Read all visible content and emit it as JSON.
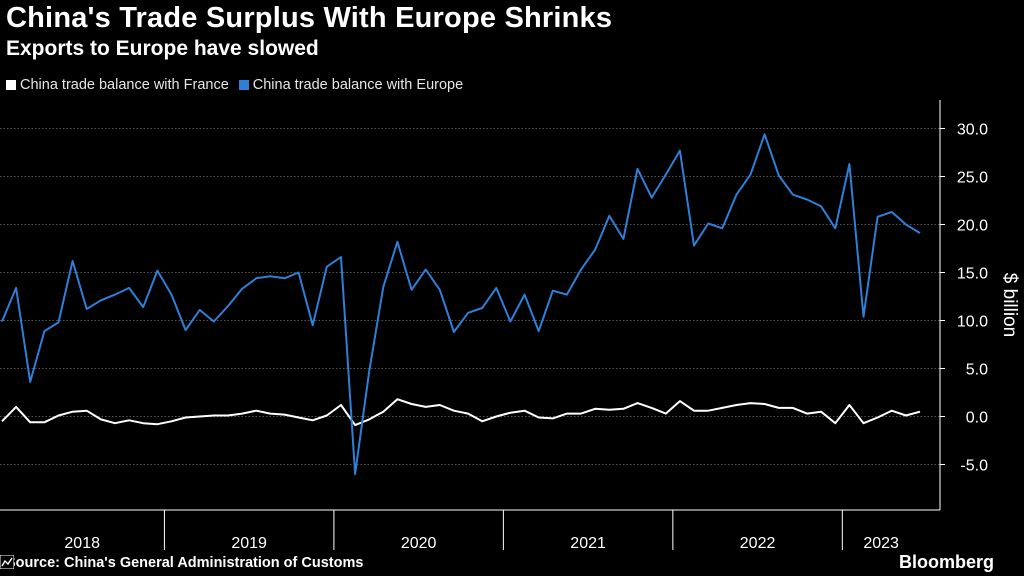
{
  "header": {
    "title": "China's Trade Surplus With Europe Shrinks",
    "subtitle": "Exports to Europe have slowed"
  },
  "footer": {
    "source": "Source: China's General Administration of Customs",
    "brand": "Bloomberg"
  },
  "colors": {
    "background": "#000000",
    "france": "#ffffff",
    "europe": "#2f7ed8",
    "grid": "#555555"
  },
  "chart_data": {
    "type": "line",
    "title": "China's Trade Surplus With Europe Shrinks",
    "subtitle": "Exports to Europe have slowed",
    "xlabel": "",
    "ylabel": "$ billion",
    "ylim": [
      -8.5,
      33
    ],
    "yticks": [
      30.0,
      25.0,
      20.0,
      15.0,
      10.0,
      5.0,
      0.0,
      -5.0
    ],
    "ytick_labels": [
      "30.0",
      "25.0",
      "20.0",
      "15.0",
      "10.0",
      "5.0",
      "0.0",
      "-5.0"
    ],
    "grid": true,
    "legend_position": "top-left",
    "year_labels": [
      "2018",
      "2019",
      "2020",
      "2021",
      "2022",
      "2023"
    ],
    "x_start": "2018-01",
    "x_end": "2023-05",
    "series": [
      {
        "name": "China trade balance with France",
        "color": "#ffffff",
        "values": [
          -0.5,
          1.0,
          -0.6,
          -0.6,
          0.1,
          0.5,
          0.6,
          -0.3,
          -0.7,
          -0.4,
          -0.7,
          -0.8,
          -0.5,
          -0.1,
          0.0,
          0.1,
          0.1,
          0.3,
          0.6,
          0.3,
          0.2,
          -0.1,
          -0.4,
          0.1,
          1.2,
          -0.9,
          -0.3,
          0.5,
          1.8,
          1.3,
          1.0,
          1.2,
          0.6,
          0.3,
          -0.5,
          0.0,
          0.4,
          0.6,
          -0.1,
          -0.2,
          0.3,
          0.3,
          0.8,
          0.7,
          0.8,
          1.4,
          0.9,
          0.3,
          1.6,
          0.6,
          0.6,
          0.9,
          1.2,
          1.4,
          1.3,
          0.9,
          0.9,
          0.3,
          0.5,
          -0.7,
          1.2,
          -0.7,
          -0.1,
          0.6,
          0.1,
          0.5
        ]
      },
      {
        "name": "China trade balance with Europe",
        "color": "#2f7ed8",
        "values": [
          9.9,
          13.4,
          3.6,
          8.9,
          9.8,
          16.2,
          11.2,
          12.1,
          12.7,
          13.4,
          11.4,
          15.2,
          12.7,
          9.0,
          11.1,
          9.9,
          11.5,
          13.3,
          14.4,
          14.6,
          14.4,
          15.0,
          9.5,
          15.6,
          16.6,
          -6.0,
          4.7,
          13.5,
          18.2,
          13.2,
          15.3,
          13.2,
          8.8,
          10.8,
          11.3,
          13.4,
          9.9,
          12.7,
          8.9,
          13.1,
          12.7,
          15.3,
          17.4,
          20.9,
          18.5,
          25.8,
          22.8,
          25.2,
          27.7,
          17.8,
          20.1,
          19.6,
          23.1,
          25.2,
          29.4,
          25.1,
          23.1,
          22.6,
          21.9,
          19.6,
          26.3,
          10.4,
          20.8,
          21.3,
          20.0,
          19.1
        ]
      }
    ]
  }
}
